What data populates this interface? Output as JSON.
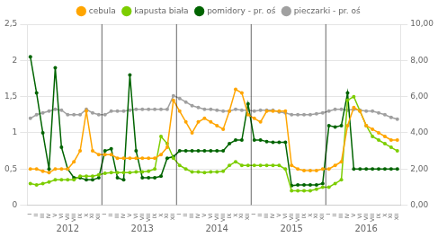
{
  "chart_data": {
    "type": "line",
    "categories": [
      "I",
      "II",
      "III",
      "IV",
      "V",
      "VI",
      "VII",
      "VIII",
      "IX",
      "X",
      "XI",
      "XII",
      "I",
      "II",
      "III",
      "IV",
      "V",
      "VI",
      "VII",
      "VIII",
      "IX",
      "X",
      "XI",
      "XII",
      "I",
      "II",
      "III",
      "IV",
      "V",
      "VI",
      "VII",
      "VIII",
      "IX",
      "X",
      "XI",
      "XII",
      "I",
      "II",
      "III",
      "IV",
      "V",
      "VI",
      "VII",
      "VIII",
      "IX",
      "X",
      "XI",
      "XII",
      "I",
      "II",
      "III",
      "IV",
      "V",
      "VI",
      "VII",
      "VIII",
      "IX",
      "X",
      "XI",
      "XII"
    ],
    "series": [
      {
        "name": "cebula",
        "color": "#FFA500",
        "marker": "circle",
        "values": [
          0.5,
          0.5,
          0.47,
          0.45,
          0.5,
          0.5,
          0.5,
          0.6,
          0.75,
          1.3,
          0.75,
          0.7,
          0.7,
          0.7,
          0.65,
          0.65,
          0.65,
          0.65,
          0.65,
          0.65,
          0.65,
          0.7,
          0.8,
          1.45,
          1.3,
          1.15,
          1.0,
          1.15,
          1.2,
          1.15,
          1.1,
          1.05,
          1.3,
          1.6,
          1.55,
          1.25,
          1.2,
          1.15,
          1.3,
          1.3,
          1.3,
          1.3,
          0.55,
          0.5,
          0.48,
          0.48,
          0.48,
          0.5,
          0.5,
          0.55,
          0.6,
          1.1,
          1.35,
          1.3,
          1.1,
          1.05,
          1.0,
          0.95,
          0.9,
          0.9
        ]
      },
      {
        "name": "kapusta biała",
        "color": "#7CCD00",
        "marker": "circle",
        "values": [
          0.3,
          0.28,
          0.3,
          0.32,
          0.35,
          0.35,
          0.35,
          0.35,
          0.4,
          0.4,
          0.4,
          0.42,
          0.44,
          0.45,
          0.45,
          0.45,
          0.45,
          0.46,
          0.46,
          0.47,
          0.5,
          0.95,
          0.85,
          0.65,
          0.55,
          0.5,
          0.46,
          0.46,
          0.45,
          0.46,
          0.46,
          0.47,
          0.55,
          0.6,
          0.55,
          0.55,
          0.55,
          0.55,
          0.55,
          0.55,
          0.55,
          0.5,
          0.2,
          0.2,
          0.2,
          0.2,
          0.22,
          0.25,
          0.25,
          0.3,
          0.35,
          1.45,
          1.5,
          1.3,
          1.1,
          0.95,
          0.9,
          0.85,
          0.8,
          0.75
        ]
      },
      {
        "name": "pomidory - pr. oś",
        "color": "#006400",
        "marker": "circle",
        "values": [
          2.05,
          1.55,
          1.0,
          0.5,
          1.9,
          0.8,
          0.5,
          0.38,
          0.38,
          0.35,
          0.35,
          0.38,
          0.75,
          0.78,
          0.38,
          0.35,
          1.8,
          0.75,
          0.38,
          0.38,
          0.38,
          0.4,
          0.65,
          0.67,
          0.75,
          0.75,
          0.75,
          0.75,
          0.75,
          0.75,
          0.75,
          0.75,
          0.85,
          0.9,
          0.9,
          1.4,
          0.9,
          0.9,
          0.88,
          0.87,
          0.87,
          0.87,
          0.27,
          0.28,
          0.28,
          0.28,
          0.28,
          0.3,
          1.1,
          1.08,
          1.1,
          1.55,
          0.5,
          0.5,
          0.5,
          0.5,
          0.5,
          0.5,
          0.5,
          0.5
        ]
      },
      {
        "name": "pieczarki - pr. oś",
        "color": "#A0A0A0",
        "marker": "circle",
        "axis": "y2",
        "values": [
          4.8,
          5.0,
          5.1,
          5.2,
          5.3,
          5.25,
          5.0,
          5.0,
          5.0,
          5.3,
          5.1,
          5.0,
          5.0,
          5.2,
          5.2,
          5.2,
          5.25,
          5.3,
          5.3,
          5.3,
          5.3,
          5.3,
          5.3,
          6.05,
          5.9,
          5.7,
          5.5,
          5.4,
          5.3,
          5.3,
          5.25,
          5.2,
          5.2,
          5.3,
          5.25,
          5.25,
          5.2,
          5.25,
          5.25,
          5.25,
          5.15,
          5.1,
          5.0,
          5.0,
          5.0,
          5.0,
          5.05,
          5.1,
          5.2,
          5.3,
          5.3,
          5.25,
          5.3,
          5.25,
          5.2,
          5.2,
          5.1,
          5.0,
          4.85,
          4.75
        ]
      }
    ],
    "ylim": [
      0,
      2.5
    ],
    "yticks": [
      0,
      {
        "value": 0.5,
        "label": "0,5"
      },
      1,
      {
        "value": 1.5,
        "label": "1,5"
      },
      2,
      {
        "value": 2.5,
        "label": "2,5"
      }
    ],
    "y2lim": [
      0,
      10.0
    ],
    "y2ticks": [
      {
        "value": 0.0,
        "label": "0,00"
      },
      {
        "value": 2.0,
        "label": "2,00"
      },
      {
        "value": 4.0,
        "label": "4,00"
      },
      {
        "value": 6.0,
        "label": "6,00"
      },
      {
        "value": 8.0,
        "label": "8,00"
      },
      {
        "value": 10.0,
        "label": "10,00"
      }
    ],
    "annotations": [
      {
        "text": "2012",
        "x": 6
      },
      {
        "text": "2013",
        "x": 18
      },
      {
        "text": "2014",
        "x": 30
      },
      {
        "text": "2015",
        "x": 42
      },
      {
        "text": "2016",
        "x": 54
      }
    ],
    "vlines": [
      11.5,
      23.5,
      35.5,
      47.5
    ],
    "grid": true,
    "legend": "top"
  }
}
